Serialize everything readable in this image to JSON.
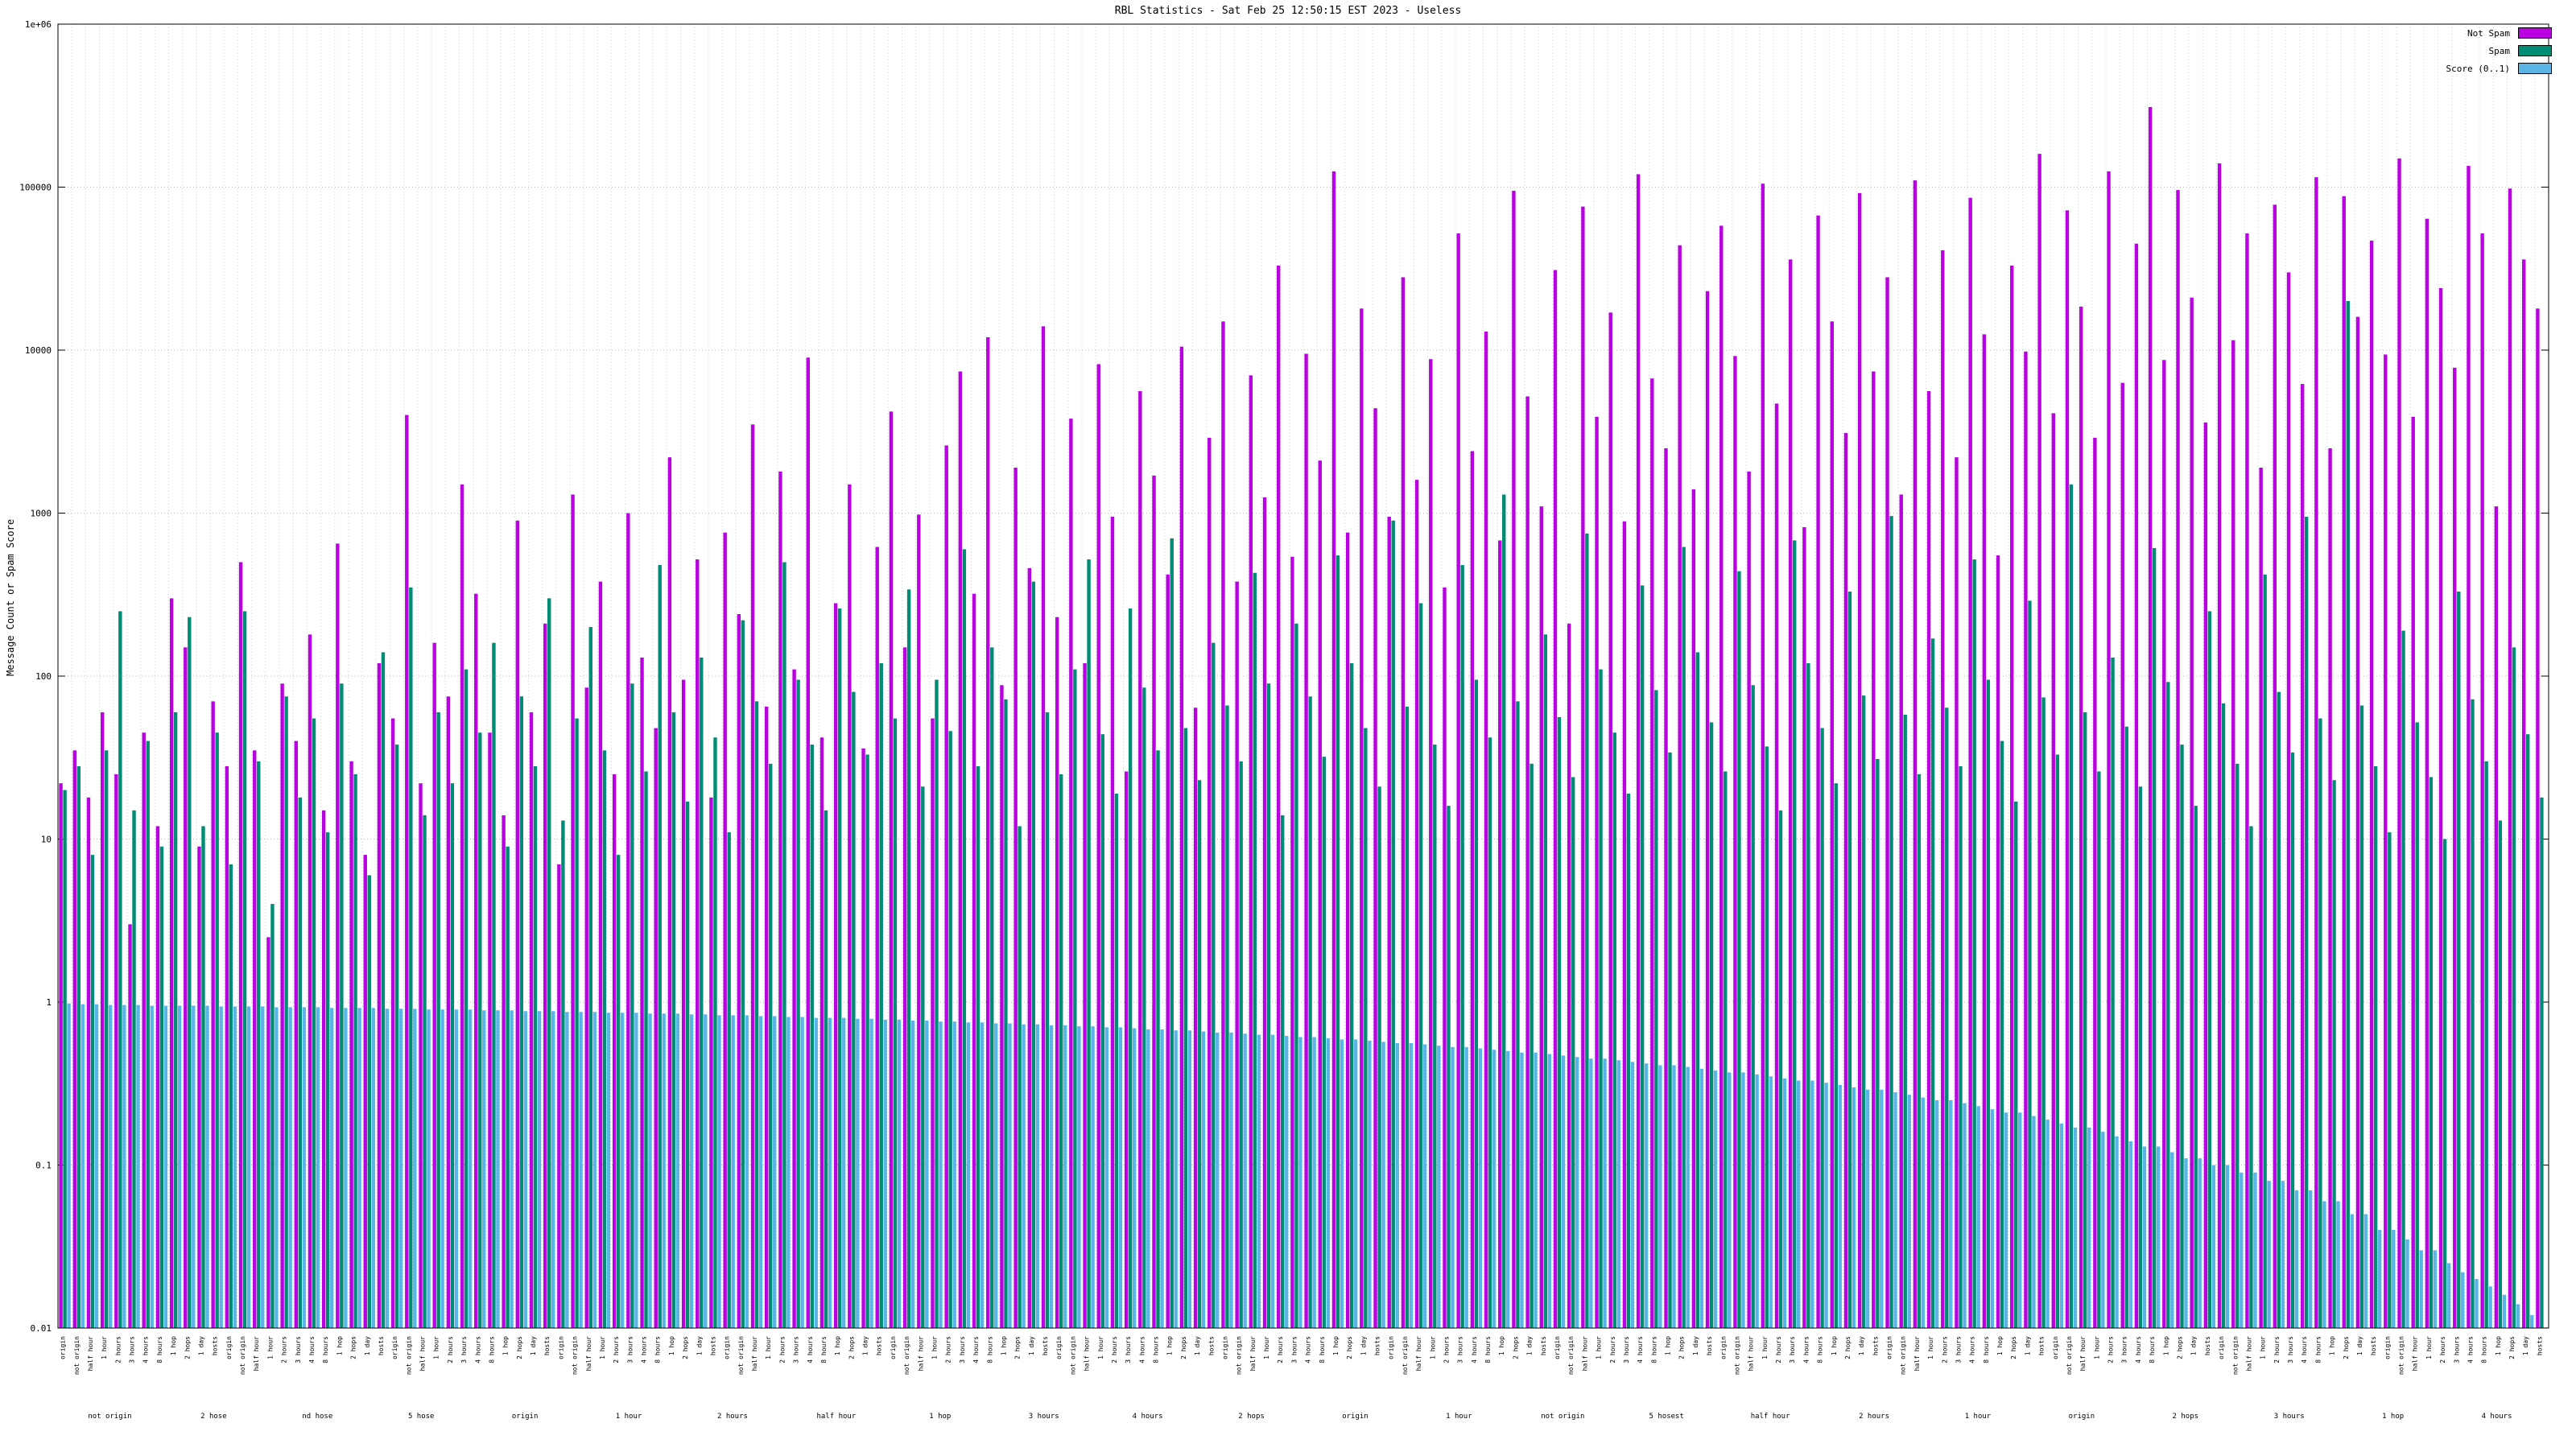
{
  "title": "RBL Statistics - Sat Feb 25 12:50:15 EST 2023 - Useless",
  "ylabel": "Message Count or Spam Score",
  "legend": [
    {
      "label": "Not Spam",
      "color": "#b800e0"
    },
    {
      "label": "Spam",
      "color": "#008b74"
    },
    {
      "label": "Score (0..1)",
      "color": "#5ab4e5"
    }
  ],
  "chart_data": {
    "type": "bar",
    "scale": "log",
    "title": "RBL Statistics - Sat Feb 25 12:50:15 EST 2023 - Useless",
    "ylabel": "Message Count or Spam Score",
    "ylim": [
      0.01,
      1000000
    ],
    "ytick_labels": [
      "1e+06",
      "100000",
      "10000",
      "1000",
      "100",
      "10",
      "1",
      "0.1",
      "0.01"
    ],
    "grid": true,
    "legend_position": "top-right",
    "n_groups": 180,
    "x_label_cycle": [
      "origin",
      "not origin",
      "half hour",
      "1 hour",
      "2 hours",
      "3 hours",
      "4 hours",
      "8 hours",
      "1 hop",
      "2 hops",
      "1 day",
      "hosts"
    ],
    "x_section_labels": [
      "not origin",
      "2 hose",
      "nd hose",
      "5 hose",
      "origin",
      "1 hour",
      "2 hours",
      "half hour",
      "1 hop",
      "3 hours",
      "4 hours",
      "2 hops",
      "origin",
      "1 hour",
      "not origin",
      "5 hosest",
      "half hour",
      "2 hours",
      "1 hour",
      "origin",
      "2 hops",
      "3 hours",
      "1 hop",
      "4 hours"
    ],
    "series": [
      {
        "name": "Not Spam",
        "color": "#b800e0",
        "values": [
          22,
          35,
          18,
          60,
          25,
          3,
          45,
          12,
          300,
          150,
          9,
          70,
          28,
          500,
          35,
          2.5,
          90,
          40,
          180,
          15,
          650,
          30,
          8,
          120,
          55,
          4000,
          22,
          160,
          75,
          1500,
          320,
          45,
          14,
          900,
          60,
          210,
          7,
          1300,
          85,
          380,
          25,
          1000,
          130,
          48,
          2200,
          95,
          520,
          18,
          760,
          240,
          3500,
          65,
          1800,
          110,
          9000,
          42,
          280,
          1500,
          36,
          620,
          4200,
          150,
          980,
          55,
          2600,
          7400,
          320,
          12000,
          88,
          1900,
          460,
          14000,
          230,
          3800,
          120,
          8200,
          950,
          26,
          5600,
          1700,
          420,
          10500,
          64,
          2900,
          15000,
          380,
          7000,
          1250,
          33000,
          540,
          9500,
          2100,
          125000,
          760,
          18000,
          4400,
          950,
          28000,
          1600,
          8800,
          350,
          52000,
          2400,
          13000,
          680,
          95000,
          5200,
          1100,
          31000,
          210,
          76000,
          3900,
          17000,
          890,
          120000,
          6700,
          2500,
          44000,
          1400,
          23000,
          58000,
          9200,
          1800,
          105000,
          4700,
          36000,
          820,
          67000,
          15000,
          3100,
          92000,
          7400,
          28000,
          1300,
          110000,
          5600,
          41000,
          2200,
          86000,
          12500,
          550,
          33000,
          9800,
          160000,
          4100,
          72000,
          18500,
          2900,
          125000,
          6300,
          45000,
          310000,
          8700,
          96000,
          21000,
          3600,
          140000,
          11500,
          52000,
          1900,
          78000,
          30000,
          6200,
          115000,
          2500,
          88000,
          16000,
          47000,
          9400,
          150000,
          3900,
          64000,
          24000,
          7800,
          135000,
          52000,
          1100,
          98000,
          36000,
          18000
        ]
      },
      {
        "name": "Spam",
        "color": "#008b74",
        "values": [
          20,
          28,
          8,
          35,
          250,
          15,
          40,
          9,
          60,
          230,
          12,
          45,
          7,
          250,
          30,
          4,
          75,
          18,
          55,
          11,
          90,
          25,
          6,
          140,
          38,
          350,
          14,
          60,
          22,
          110,
          45,
          160,
          9,
          75,
          28,
          300,
          13,
          55,
          200,
          35,
          8,
          90,
          26,
          480,
          60,
          17,
          130,
          42,
          11,
          220,
          70,
          29,
          500,
          95,
          38,
          15,
          260,
          80,
          33,
          120,
          55,
          340,
          21,
          95,
          46,
          600,
          28,
          150,
          72,
          12,
          380,
          60,
          25,
          110,
          520,
          44,
          19,
          260,
          85,
          35,
          700,
          48,
          23,
          160,
          66,
          30,
          430,
          90,
          14,
          210,
          75,
          32,
          550,
          120,
          48,
          21,
          900,
          65,
          280,
          38,
          16,
          480,
          95,
          42,
          1300,
          70,
          29,
          180,
          56,
          24,
          750,
          110,
          45,
          19,
          360,
          82,
          34,
          620,
          140,
          52,
          26,
          440,
          88,
          37,
          15,
          680,
          120,
          48,
          22,
          330,
          76,
          31,
          960,
          58,
          25,
          170,
          64,
          28,
          520,
          95,
          40,
          17,
          290,
          74,
          33,
          1500,
          60,
          26,
          130,
          49,
          21,
          610,
          92,
          38,
          16,
          250,
          68,
          29,
          12,
          420,
          80,
          34,
          950,
          55,
          23,
          20000,
          66,
          28,
          11,
          190,
          52,
          24,
          10,
          330,
          72,
          30,
          13,
          150,
          44,
          18
        ]
      },
      {
        "name": "Score (0..1)",
        "color": "#5ab4e5",
        "values": [
          0.98,
          0.97,
          0.97,
          0.96,
          0.96,
          0.96,
          0.95,
          0.95,
          0.95,
          0.95,
          0.95,
          0.94,
          0.94,
          0.94,
          0.94,
          0.93,
          0.93,
          0.93,
          0.93,
          0.92,
          0.92,
          0.92,
          0.92,
          0.91,
          0.91,
          0.91,
          0.9,
          0.9,
          0.9,
          0.9,
          0.89,
          0.89,
          0.89,
          0.88,
          0.88,
          0.88,
          0.87,
          0.87,
          0.87,
          0.86,
          0.86,
          0.86,
          0.85,
          0.85,
          0.85,
          0.84,
          0.84,
          0.83,
          0.83,
          0.83,
          0.82,
          0.82,
          0.81,
          0.81,
          0.8,
          0.8,
          0.8,
          0.79,
          0.79,
          0.78,
          0.78,
          0.77,
          0.77,
          0.76,
          0.76,
          0.75,
          0.75,
          0.74,
          0.74,
          0.73,
          0.73,
          0.72,
          0.72,
          0.71,
          0.71,
          0.7,
          0.7,
          0.69,
          0.68,
          0.68,
          0.67,
          0.67,
          0.66,
          0.65,
          0.65,
          0.64,
          0.63,
          0.63,
          0.62,
          0.61,
          0.61,
          0.6,
          0.59,
          0.59,
          0.58,
          0.57,
          0.56,
          0.56,
          0.55,
          0.54,
          0.53,
          0.53,
          0.52,
          0.51,
          0.5,
          0.49,
          0.49,
          0.48,
          0.47,
          0.46,
          0.45,
          0.45,
          0.44,
          0.43,
          0.42,
          0.41,
          0.41,
          0.4,
          0.39,
          0.38,
          0.37,
          0.37,
          0.36,
          0.35,
          0.34,
          0.33,
          0.33,
          0.32,
          0.31,
          0.3,
          0.29,
          0.29,
          0.28,
          0.27,
          0.26,
          0.25,
          0.25,
          0.24,
          0.23,
          0.22,
          0.21,
          0.21,
          0.2,
          0.19,
          0.18,
          0.17,
          0.17,
          0.16,
          0.15,
          0.14,
          0.13,
          0.13,
          0.12,
          0.11,
          0.11,
          0.1,
          0.1,
          0.09,
          0.09,
          0.08,
          0.08,
          0.07,
          0.07,
          0.06,
          0.06,
          0.05,
          0.05,
          0.04,
          0.04,
          0.035,
          0.03,
          0.03,
          0.025,
          0.022,
          0.02,
          0.018,
          0.016,
          0.014,
          0.012,
          0.01
        ]
      }
    ]
  }
}
